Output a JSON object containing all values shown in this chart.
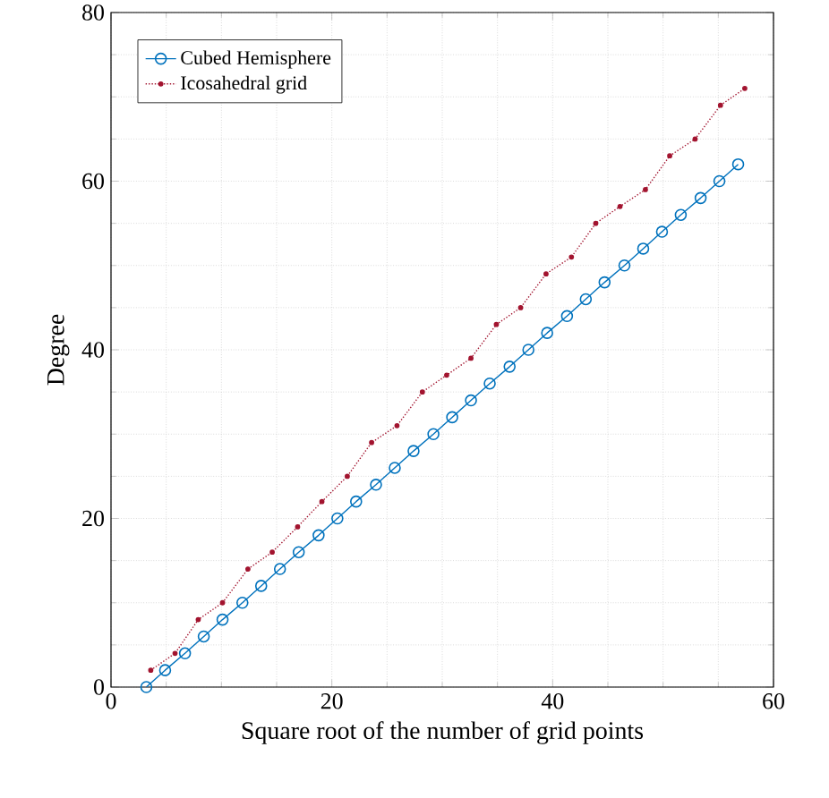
{
  "chart_data": {
    "type": "line",
    "xlabel": "Square root of the number of grid points",
    "ylabel": "Degree",
    "xlim": [
      0,
      60
    ],
    "ylim": [
      0,
      80
    ],
    "xticks": [
      0,
      20,
      40,
      60
    ],
    "yticks": [
      0,
      20,
      40,
      60,
      80
    ],
    "grid": true,
    "legend": "top left",
    "series": [
      {
        "name": "Cubed Hemisphere",
        "color": "#0072bd",
        "marker": "circle",
        "line_style": "solid",
        "x": [
          3.2,
          4.9,
          6.7,
          8.4,
          10.1,
          11.9,
          13.6,
          15.3,
          17.0,
          18.8,
          20.5,
          22.2,
          24.0,
          25.7,
          27.4,
          29.2,
          30.9,
          32.6,
          34.3,
          36.1,
          37.8,
          39.5,
          41.3,
          43.0,
          44.7,
          46.5,
          48.2,
          49.9,
          51.6,
          53.4,
          55.1,
          56.8
        ],
        "values": [
          0,
          2,
          4,
          6,
          8,
          10,
          12,
          14,
          16,
          18,
          20,
          22,
          24,
          26,
          28,
          30,
          32,
          34,
          36,
          38,
          40,
          42,
          44,
          46,
          48,
          50,
          52,
          54,
          56,
          58,
          60,
          62
        ]
      },
      {
        "name": "Icosahedral grid",
        "color": "#a2142f",
        "marker": "circle",
        "line_style": "dotted",
        "x": [
          3.6,
          5.8,
          7.9,
          10.1,
          12.4,
          14.6,
          16.9,
          19.1,
          21.4,
          23.6,
          25.9,
          28.2,
          30.4,
          32.6,
          34.9,
          37.1,
          39.4,
          41.7,
          43.9,
          46.1,
          48.4,
          50.6,
          52.9,
          55.2,
          57.4
        ],
        "values": [
          2,
          4,
          8,
          10,
          14,
          16,
          19,
          22,
          25,
          29,
          31,
          35,
          37,
          39,
          43,
          45,
          49,
          51,
          55,
          57,
          59,
          63,
          65,
          69,
          71
        ]
      }
    ]
  }
}
